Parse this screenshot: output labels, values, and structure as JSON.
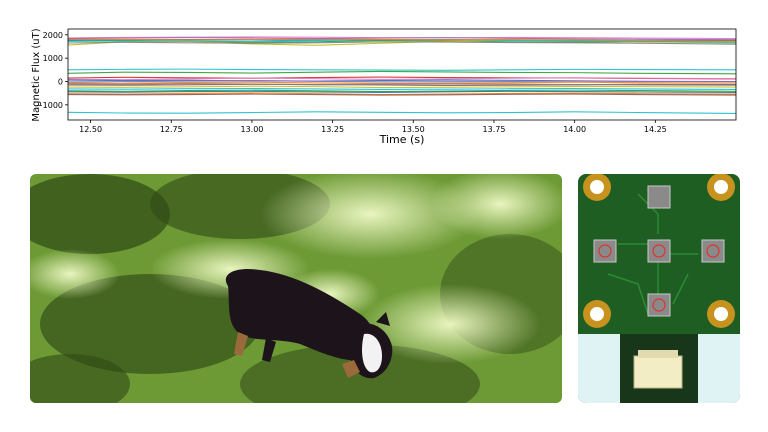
{
  "chart_data": {
    "type": "line",
    "xlabel": "Time (s)",
    "ylabel": "Magnetic Flux (uT)",
    "xlim": [
      12.43,
      14.5
    ],
    "ylim": [
      -1650,
      2250
    ],
    "x_ticks": [
      "12.50",
      "12.75",
      "13.00",
      "13.25",
      "13.50",
      "13.75",
      "14.00",
      "14.25"
    ],
    "y_ticks": [
      "2000",
      "1000",
      "0",
      "−1000"
    ],
    "grid": false,
    "x": [
      12.43,
      12.6,
      12.8,
      13.0,
      13.2,
      13.4,
      13.6,
      13.8,
      14.0,
      14.2,
      14.5
    ],
    "series": [
      {
        "color": "#e377c2",
        "values": [
          1870,
          1890,
          1900,
          1910,
          1900,
          1880,
          1870,
          1890,
          1880,
          1860,
          1840
        ]
      },
      {
        "color": "#1f77b4",
        "values": [
          1780,
          1790,
          1800,
          1790,
          1770,
          1790,
          1800,
          1780,
          1760,
          1750,
          1770
        ]
      },
      {
        "color": "#2ca02c",
        "values": [
          1740,
          1760,
          1730,
          1680,
          1700,
          1760,
          1740,
          1700,
          1690,
          1710,
          1740
        ]
      },
      {
        "color": "#bcbd22",
        "values": [
          1560,
          1700,
          1720,
          1610,
          1550,
          1640,
          1720,
          1760,
          1790,
          1700,
          1650
        ]
      },
      {
        "color": "#17becf",
        "values": [
          1720,
          1730,
          1740,
          1720,
          1760,
          1800,
          1790,
          1760,
          1740,
          1720,
          1680
        ]
      },
      {
        "color": "#ff7f0e",
        "values": [
          1810,
          1800,
          1780,
          1790,
          1820,
          1800,
          1780,
          1800,
          1780,
          1760,
          1720
        ]
      },
      {
        "color": "#7f7f7f",
        "values": [
          1650,
          1680,
          1660,
          1640,
          1660,
          1700,
          1690,
          1670,
          1660,
          1640,
          1600
        ]
      },
      {
        "color": "#9467bd",
        "values": [
          1840,
          1860,
          1880,
          1860,
          1840,
          1860,
          1880,
          1850,
          1830,
          1810,
          1790
        ]
      },
      {
        "color": "#17becf",
        "values": [
          500,
          520,
          530,
          510,
          500,
          490,
          480,
          500,
          520,
          510,
          500
        ]
      },
      {
        "color": "#2ca02c",
        "values": [
          350,
          400,
          390,
          360,
          400,
          430,
          410,
          390,
          380,
          350,
          330
        ]
      },
      {
        "color": "#d62728",
        "values": [
          150,
          180,
          160,
          140,
          170,
          190,
          170,
          160,
          150,
          130,
          110
        ]
      },
      {
        "color": "#e377c2",
        "values": [
          100,
          80,
          110,
          150,
          120,
          90,
          110,
          140,
          160,
          140,
          120
        ]
      },
      {
        "color": "#1f77b4",
        "values": [
          60,
          40,
          50,
          30,
          20,
          40,
          60,
          50,
          30,
          10,
          0
        ]
      },
      {
        "color": "#9467bd",
        "values": [
          -20,
          -10,
          20,
          40,
          10,
          -20,
          -10,
          0,
          20,
          0,
          -10
        ]
      },
      {
        "color": "#ff7f0e",
        "values": [
          -60,
          -80,
          -40,
          -30,
          -60,
          -90,
          -70,
          -50,
          -30,
          -50,
          -70
        ]
      },
      {
        "color": "#8c564b",
        "values": [
          -150,
          -160,
          -140,
          -120,
          -130,
          -150,
          -170,
          -160,
          -140,
          -120,
          -130
        ]
      },
      {
        "color": "#7f7f7f",
        "values": [
          -100,
          -120,
          -90,
          -110,
          -140,
          -120,
          -100,
          -110,
          -130,
          -150,
          -160
        ]
      },
      {
        "color": "#bcbd22",
        "values": [
          -240,
          -250,
          -230,
          -200,
          -220,
          -260,
          -250,
          -230,
          -210,
          -220,
          -240
        ]
      },
      {
        "color": "#17becf",
        "values": [
          -320,
          -330,
          -310,
          -300,
          -320,
          -340,
          -330,
          -310,
          -300,
          -320,
          -340
        ]
      },
      {
        "color": "#2ca02c",
        "values": [
          -400,
          -420,
          -390,
          -370,
          -400,
          -430,
          -410,
          -380,
          -370,
          -390,
          -420
        ]
      },
      {
        "color": "#1f77b4",
        "values": [
          -440,
          -460,
          -430,
          -420,
          -450,
          -470,
          -440,
          -420,
          -430,
          -450,
          -470
        ]
      },
      {
        "color": "#ff7f0e",
        "values": [
          -520,
          -540,
          -510,
          -490,
          -520,
          -560,
          -540,
          -510,
          -500,
          -520,
          -540
        ]
      },
      {
        "color": "#8c564b",
        "values": [
          -560,
          -570,
          -560,
          -540,
          -560,
          -580,
          -570,
          -550,
          -540,
          -560,
          -580
        ]
      },
      {
        "color": "#17becf",
        "values": [
          -1320,
          -1350,
          -1360,
          -1330,
          -1300,
          -1320,
          -1340,
          -1330,
          -1300,
          -1330,
          -1370
        ]
      }
    ]
  },
  "panels": {
    "photo": {
      "grass_light": "#cfe89a",
      "grass_mid": "#6d9a35",
      "grass_dark": "#2f4a16",
      "dog_black": "#1c141a",
      "dog_tan": "#9a6a3a",
      "dog_white": "#f2f2f2"
    },
    "board": {
      "pcb_green": "#1f5e22",
      "pad_gold": "#c8921e",
      "chip_grey": "#8a8a8a",
      "flex_blue": "#dff2f4",
      "connector": "#f3edc6"
    }
  }
}
